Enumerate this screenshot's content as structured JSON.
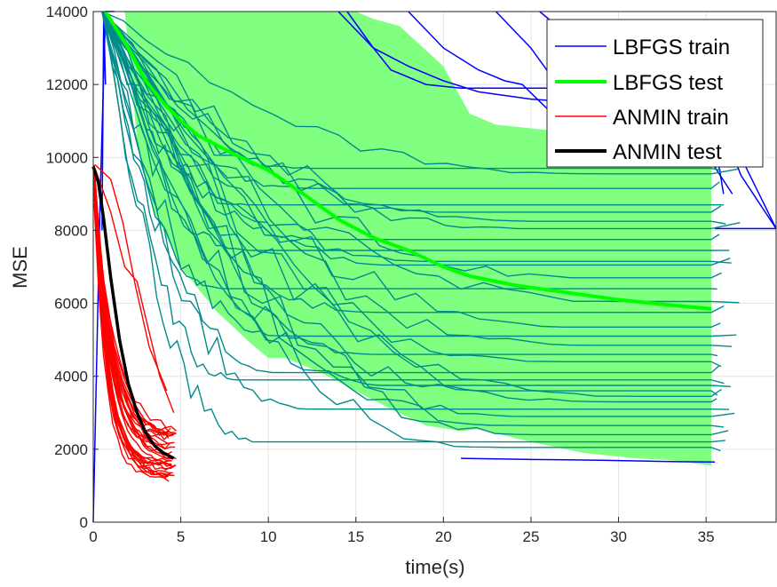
{
  "chart_data": {
    "type": "line",
    "title": "",
    "xlabel": "time(s)",
    "ylabel": "MSE",
    "xlim": [
      0,
      39
    ],
    "ylim": [
      0,
      14000
    ],
    "xticks": [
      0,
      5,
      10,
      15,
      20,
      25,
      30,
      35
    ],
    "yticks": [
      0,
      2000,
      4000,
      6000,
      8000,
      10000,
      12000,
      14000
    ],
    "grid": true,
    "legend_position": "top-right",
    "legend": [
      {
        "label": "LBFGS train",
        "color": "#0000ff",
        "width": 1.5
      },
      {
        "label": "LBFGS test",
        "color": "#00ff00",
        "width": 4
      },
      {
        "label": "ANMIN train",
        "color": "#ff0000",
        "width": 1.5
      },
      {
        "label": "ANMIN test",
        "color": "#000000",
        "width": 4
      }
    ],
    "series": [
      {
        "name": "LBFGS test",
        "color": "#00ff00",
        "x": [
          0.7,
          2,
          3,
          4,
          5,
          6,
          7,
          8,
          10,
          12,
          14,
          16,
          18,
          20,
          21.5,
          24,
          27,
          30,
          33,
          35.3
        ],
        "y": [
          14000,
          13000,
          12100,
          11500,
          11000,
          10600,
          10350,
          10100,
          9650,
          9000,
          8300,
          7800,
          7450,
          7000,
          6750,
          6500,
          6300,
          6100,
          5950,
          5850
        ]
      },
      {
        "name": "ANMIN test",
        "color": "#000000",
        "x": [
          0,
          0.3,
          0.6,
          1,
          1.5,
          2,
          2.5,
          3,
          3.5,
          4,
          4.6
        ],
        "y": [
          9750,
          9300,
          8300,
          6700,
          5000,
          3800,
          3000,
          2450,
          2100,
          1900,
          1750
        ]
      },
      {
        "name": "LBFGS test band upper",
        "color": "#80ff80",
        "x": [
          5.5,
          7,
          9,
          11,
          13,
          15,
          16,
          17.5,
          20,
          21.5,
          23,
          26,
          29,
          32,
          35.3
        ],
        "y": [
          14000,
          14000,
          14000,
          14000,
          14000,
          14000,
          13800,
          13600,
          12500,
          11200,
          10900,
          10750,
          10550,
          10350,
          10200
        ]
      },
      {
        "name": "LBFGS test band lower",
        "color": "#80ff80",
        "x": [
          1.8,
          2.5,
          3.5,
          5,
          7,
          9,
          10,
          11,
          13,
          15,
          17,
          19,
          21,
          22,
          25,
          28,
          31,
          33,
          35.3
        ],
        "y": [
          14000,
          10500,
          8500,
          7000,
          5800,
          4900,
          4500,
          4500,
          4100,
          3600,
          3100,
          2650,
          2500,
          2550,
          2200,
          1900,
          1750,
          1700,
          1550
        ]
      }
    ],
    "lbfgs_train_plateaus": [
      9700,
      9550,
      9150,
      8700,
      8500,
      8250,
      8050,
      7750,
      7450,
      7150,
      7050,
      6700,
      6400,
      6050,
      5750,
      5350,
      5100,
      4850,
      4600,
      4400,
      4100,
      3900,
      3750,
      3600,
      3450,
      3300,
      3100,
      2900,
      2650,
      2400,
      2200,
      2050
    ]
  }
}
